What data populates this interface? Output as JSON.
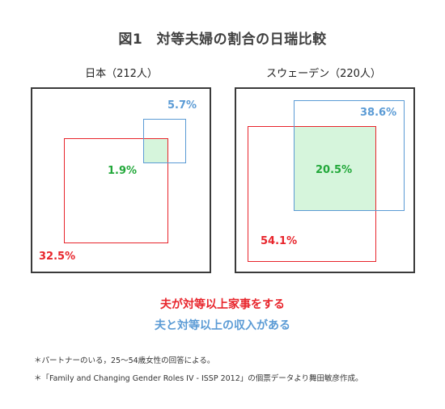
{
  "title": "図1　対等夫婦の割合の日瑞比較",
  "japan": {
    "label": "日本（212人）",
    "housework_pct": "32.5%",
    "income_pct": "5.7%",
    "both_pct": "1.9%"
  },
  "sweden": {
    "label": "スウェーデン（220人）",
    "housework_pct": "54.1%",
    "income_pct": "38.6%",
    "both_pct": "20.5%"
  },
  "legend": {
    "housework": "夫が対等以上家事をする",
    "income": "夫と対等以上の収入がある"
  },
  "notes": [
    "＊パートナーのいる，25～54歳女性の回答による。",
    "＊「Family and Changing Gender Roles IV - ISSP 2012」の個票データより舞田敏彦作成。"
  ],
  "colors": {
    "housework": "#e8252c",
    "income": "#5b9bd5",
    "overlap_text": "#22a83a",
    "overlap_fill": "#d6f5dc"
  }
}
